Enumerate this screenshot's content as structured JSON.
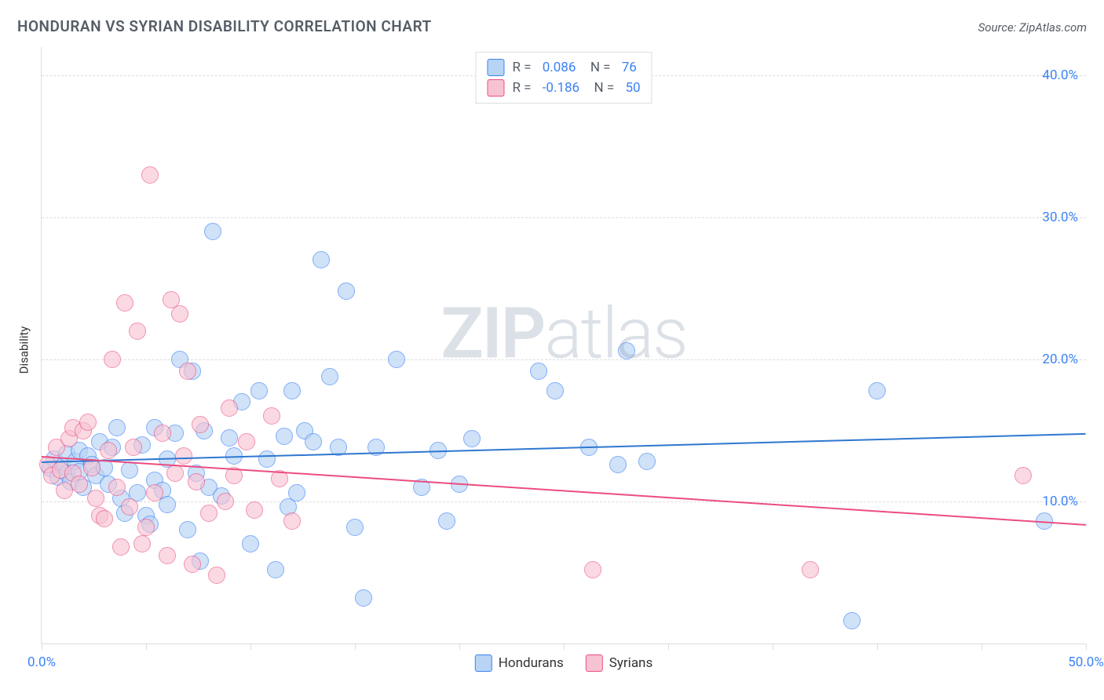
{
  "title": "HONDURAN VS SYRIAN DISABILITY CORRELATION CHART",
  "source_prefix": "Source: ",
  "source_name": "ZipAtlas.com",
  "ylabel": "Disability",
  "watermark_bold": "ZIP",
  "watermark_light": "atlas",
  "chart": {
    "type": "scatter",
    "xlim": [
      0,
      50
    ],
    "ylim": [
      0,
      42
    ],
    "x_ticks": [
      0,
      5,
      10,
      15,
      20,
      25,
      30,
      35,
      40,
      45,
      50
    ],
    "x_tick_labels": {
      "0": "0.0%",
      "50": "50.0%"
    },
    "y_ticks": [
      10,
      20,
      30,
      40
    ],
    "y_tick_labels": {
      "10": "10.0%",
      "20": "20.0%",
      "30": "30.0%",
      "40": "40.0%"
    },
    "grid_color": "#dddddd",
    "background_color": "#ffffff",
    "point_radius": 11,
    "series": [
      {
        "name": "Hondurans",
        "fill": "#b8d4f5",
        "stroke": "#3b82f6",
        "fill_opacity": 0.65,
        "R": "0.086",
        "N": "76",
        "trend": {
          "x1": 0,
          "y1": 12.8,
          "x2": 50,
          "y2": 14.8,
          "color": "#2f77d0"
        },
        "points": [
          [
            0.4,
            12.3
          ],
          [
            0.6,
            13.0
          ],
          [
            0.8,
            11.7
          ],
          [
            1.0,
            12.5
          ],
          [
            1.2,
            13.4
          ],
          [
            1.2,
            12.0
          ],
          [
            1.4,
            11.4
          ],
          [
            1.6,
            12.8
          ],
          [
            1.8,
            12.1
          ],
          [
            1.8,
            13.6
          ],
          [
            2.0,
            11.0
          ],
          [
            2.2,
            13.2
          ],
          [
            2.4,
            12.6
          ],
          [
            2.6,
            11.8
          ],
          [
            2.8,
            14.2
          ],
          [
            3.0,
            12.4
          ],
          [
            3.2,
            11.2
          ],
          [
            3.4,
            13.8
          ],
          [
            3.8,
            10.2
          ],
          [
            4.0,
            9.2
          ],
          [
            4.2,
            12.2
          ],
          [
            4.6,
            10.6
          ],
          [
            4.8,
            14.0
          ],
          [
            5.0,
            9.0
          ],
          [
            5.4,
            11.5
          ],
          [
            5.4,
            15.2
          ],
          [
            5.8,
            10.8
          ],
          [
            6.0,
            13.0
          ],
          [
            6.4,
            14.8
          ],
          [
            6.6,
            20.0
          ],
          [
            7.0,
            8.0
          ],
          [
            7.2,
            19.2
          ],
          [
            7.4,
            12.0
          ],
          [
            7.8,
            15.0
          ],
          [
            8.0,
            11.0
          ],
          [
            8.2,
            29.0
          ],
          [
            8.6,
            10.4
          ],
          [
            9.0,
            14.5
          ],
          [
            9.2,
            13.2
          ],
          [
            9.6,
            17.0
          ],
          [
            10.0,
            7.0
          ],
          [
            10.4,
            17.8
          ],
          [
            10.8,
            13.0
          ],
          [
            11.2,
            5.2
          ],
          [
            11.6,
            14.6
          ],
          [
            12.0,
            17.8
          ],
          [
            12.2,
            10.6
          ],
          [
            12.6,
            15.0
          ],
          [
            13.0,
            14.2
          ],
          [
            13.4,
            27.0
          ],
          [
            13.8,
            18.8
          ],
          [
            14.2,
            13.8
          ],
          [
            14.6,
            24.8
          ],
          [
            15.0,
            8.2
          ],
          [
            15.4,
            3.2
          ],
          [
            16.0,
            13.8
          ],
          [
            17.0,
            20.0
          ],
          [
            18.2,
            11.0
          ],
          [
            19.0,
            13.6
          ],
          [
            19.4,
            8.6
          ],
          [
            20.0,
            11.2
          ],
          [
            20.6,
            14.4
          ],
          [
            23.8,
            19.2
          ],
          [
            24.6,
            17.8
          ],
          [
            26.2,
            13.8
          ],
          [
            27.6,
            12.6
          ],
          [
            28.0,
            20.6
          ],
          [
            29.0,
            12.8
          ],
          [
            38.8,
            1.6
          ],
          [
            40.0,
            17.8
          ],
          [
            48.0,
            8.6
          ],
          [
            6.0,
            9.8
          ],
          [
            7.6,
            5.8
          ],
          [
            3.6,
            15.2
          ],
          [
            5.2,
            8.4
          ],
          [
            11.8,
            9.6
          ]
        ]
      },
      {
        "name": "Syrians",
        "fill": "#f7c3d2",
        "stroke": "#ec4d80",
        "fill_opacity": 0.62,
        "R": "-0.186",
        "N": "50",
        "trend": {
          "x1": 0,
          "y1": 13.2,
          "x2": 50,
          "y2": 8.4,
          "color": "#ec4d80"
        },
        "points": [
          [
            0.3,
            12.6
          ],
          [
            0.5,
            11.8
          ],
          [
            0.7,
            13.8
          ],
          [
            0.9,
            12.2
          ],
          [
            1.1,
            10.8
          ],
          [
            1.3,
            14.4
          ],
          [
            1.5,
            12.0
          ],
          [
            1.5,
            15.2
          ],
          [
            1.8,
            11.2
          ],
          [
            2.0,
            15.0
          ],
          [
            2.2,
            15.6
          ],
          [
            2.4,
            12.4
          ],
          [
            2.6,
            10.2
          ],
          [
            2.8,
            9.0
          ],
          [
            3.0,
            8.8
          ],
          [
            3.2,
            13.6
          ],
          [
            3.4,
            20.0
          ],
          [
            3.6,
            11.0
          ],
          [
            3.8,
            6.8
          ],
          [
            4.0,
            24.0
          ],
          [
            4.2,
            9.6
          ],
          [
            4.4,
            13.8
          ],
          [
            4.6,
            22.0
          ],
          [
            4.8,
            7.0
          ],
          [
            5.0,
            8.2
          ],
          [
            5.2,
            33.0
          ],
          [
            5.4,
            10.6
          ],
          [
            5.8,
            14.8
          ],
          [
            6.0,
            6.2
          ],
          [
            6.2,
            24.2
          ],
          [
            6.4,
            12.0
          ],
          [
            6.6,
            23.2
          ],
          [
            7.0,
            19.2
          ],
          [
            7.2,
            5.6
          ],
          [
            7.4,
            11.4
          ],
          [
            7.6,
            15.4
          ],
          [
            8.0,
            9.2
          ],
          [
            8.4,
            4.8
          ],
          [
            8.8,
            10.0
          ],
          [
            9.0,
            16.6
          ],
          [
            9.2,
            11.8
          ],
          [
            9.8,
            14.2
          ],
          [
            10.2,
            9.4
          ],
          [
            11.0,
            16.0
          ],
          [
            11.4,
            11.6
          ],
          [
            12.0,
            8.6
          ],
          [
            26.4,
            5.2
          ],
          [
            36.8,
            5.2
          ],
          [
            47.0,
            11.8
          ],
          [
            6.8,
            13.2
          ]
        ]
      }
    ]
  },
  "legend_bottom": [
    {
      "label": "Hondurans",
      "fill": "#b8d4f5",
      "stroke": "#3b82f6"
    },
    {
      "label": "Syrians",
      "fill": "#f7c3d2",
      "stroke": "#ec4d80"
    }
  ]
}
